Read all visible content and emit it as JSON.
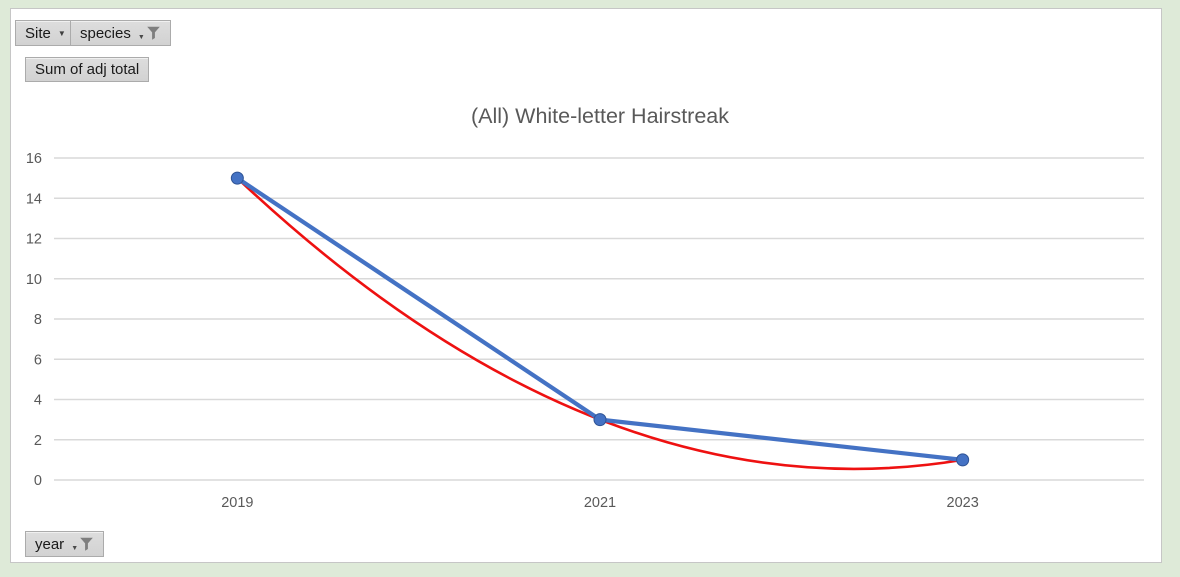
{
  "window": {
    "background": "#deead8"
  },
  "chart_card": {
    "background": "#ffffff",
    "border_color": "#c6c6c6"
  },
  "field_buttons": {
    "site": {
      "label": "Site",
      "icon": "chevron-down-icon"
    },
    "species": {
      "label": "species",
      "icon": "filter-funnel-icon"
    },
    "value": {
      "label": "Sum of adj total",
      "icon": "none"
    },
    "year": {
      "label": "year",
      "icon": "filter-funnel-icon"
    }
  },
  "chart_data": {
    "type": "line",
    "title": "(All) White-letter Hairstreak",
    "categories": [
      "2019",
      "2021",
      "2023"
    ],
    "series": [
      {
        "name": "Sum of adj total",
        "values": [
          15,
          3,
          1
        ],
        "color": "#4472c4",
        "marker": "circle",
        "marker_border": "#2e5395"
      }
    ],
    "trendline": {
      "type": "polynomial",
      "order": 2,
      "color": "#ee1111",
      "fitted_values_at_categories": [
        15,
        3,
        1
      ]
    },
    "xlabel": "",
    "ylabel": "",
    "ylim": [
      0,
      16
    ],
    "yticks": [
      0,
      2,
      4,
      6,
      8,
      10,
      12,
      14,
      16
    ],
    "grid": true,
    "legend": false,
    "axis_text_color": "#595959",
    "gridline_color": "#d9d9d9"
  }
}
